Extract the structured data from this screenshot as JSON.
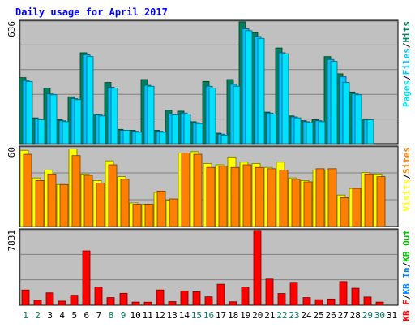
{
  "chart_data": {
    "title": "Daily usage for April 2017",
    "colors": {
      "title": "#0000ff",
      "hits": "#00805c",
      "files": "#00c0ff",
      "pages": "#00e0ff",
      "visits": "#ffff00",
      "sites": "#ff8000",
      "kb_in": "#0080ff",
      "kb_out": "#00c000",
      "kb_f": "#ff0000",
      "panel_bg": "#c0c0c0",
      "weekend_label": "#00805c"
    },
    "categories": [
      "1",
      "2",
      "3",
      "4",
      "5",
      "6",
      "7",
      "8",
      "9",
      "10",
      "11",
      "12",
      "13",
      "14",
      "15",
      "16",
      "17",
      "18",
      "19",
      "20",
      "21",
      "22",
      "23",
      "24",
      "25",
      "26",
      "27",
      "28",
      "29",
      "30",
      "31"
    ],
    "weekend_days": [
      "1",
      "2",
      "8",
      "9",
      "15",
      "16",
      "22",
      "23",
      "29",
      "30"
    ],
    "panels": [
      {
        "type": "bar",
        "max_label": "636",
        "ylim": [
          0,
          636
        ],
        "legend": [
          "Pages",
          "/",
          "Files",
          "/",
          "Hits"
        ],
        "legend_colors": [
          "#00e0ff",
          "#000000",
          "#00c0ff",
          "#000000",
          "#00805c"
        ],
        "series": [
          {
            "name": "Hits",
            "values": [
              345,
              135,
              290,
              125,
              245,
              475,
              155,
              320,
              75,
              70,
              335,
              70,
              175,
              170,
              115,
              325,
              55,
              335,
              636,
              580,
              165,
              500,
              145,
              120,
              125,
              455,
              365,
              270,
              130,
              0,
              0
            ]
          },
          {
            "name": "Files",
            "values": [
              330,
              130,
              260,
              120,
              235,
              465,
              150,
              295,
              70,
              65,
              305,
              65,
              155,
              160,
              110,
              300,
              50,
              310,
              600,
              560,
              160,
              475,
              140,
              115,
              120,
              440,
              350,
              260,
              125,
              0,
              0
            ]
          },
          {
            "name": "Pages",
            "values": [
              325,
              125,
              255,
              115,
              230,
              455,
              145,
              290,
              70,
              60,
              300,
              60,
              150,
              155,
              105,
              290,
              45,
              300,
              590,
              550,
              155,
              470,
              135,
              110,
              115,
              430,
              320,
              255,
              125,
              0,
              0
            ]
          }
        ]
      },
      {
        "type": "bar",
        "max_label": "60",
        "ylim": [
          0,
          60
        ],
        "legend": [
          "Visits",
          "/",
          "Sites"
        ],
        "legend_colors": [
          "#ffff00",
          "#000000",
          "#ff8000"
        ],
        "series": [
          {
            "name": "Visits",
            "values": [
              58,
              37,
              43,
              32,
              59,
              40,
              35,
              50,
              38,
              18,
              17,
              26,
              20,
              56,
              57,
              48,
              47,
              53,
              49,
              48,
              45,
              49,
              37,
              35,
              43,
              43,
              24,
              29,
              41,
              40,
              0
            ]
          },
          {
            "name": "Sites",
            "values": [
              55,
              35,
              40,
              32,
              54,
              39,
              33,
              47,
              36,
              17,
              17,
              27,
              21,
              56,
              55,
              45,
              46,
              45,
              47,
              45,
              44,
              43,
              36,
              34,
              44,
              44,
              22,
              29,
              40,
              38,
              0
            ]
          }
        ]
      },
      {
        "type": "bar",
        "max_label": "7831",
        "ylim": [
          0,
          7831
        ],
        "legend": [
          "KB F",
          "/",
          "KB In",
          "/",
          "KB Out"
        ],
        "legend_colors": [
          "#ff0000",
          "#000000",
          "#0080ff",
          "#000000",
          "#00c000"
        ],
        "series": [
          {
            "name": "KB F",
            "values": [
              1600,
              520,
              1300,
              430,
              1050,
              5700,
              1900,
              800,
              1250,
              330,
              320,
              1600,
              380,
              1500,
              1420,
              880,
              2200,
              360,
              1900,
              7831,
              2740,
              1230,
              2400,
              800,
              580,
              650,
              2480,
              1780,
              860,
              330,
              0
            ]
          }
        ]
      }
    ]
  }
}
